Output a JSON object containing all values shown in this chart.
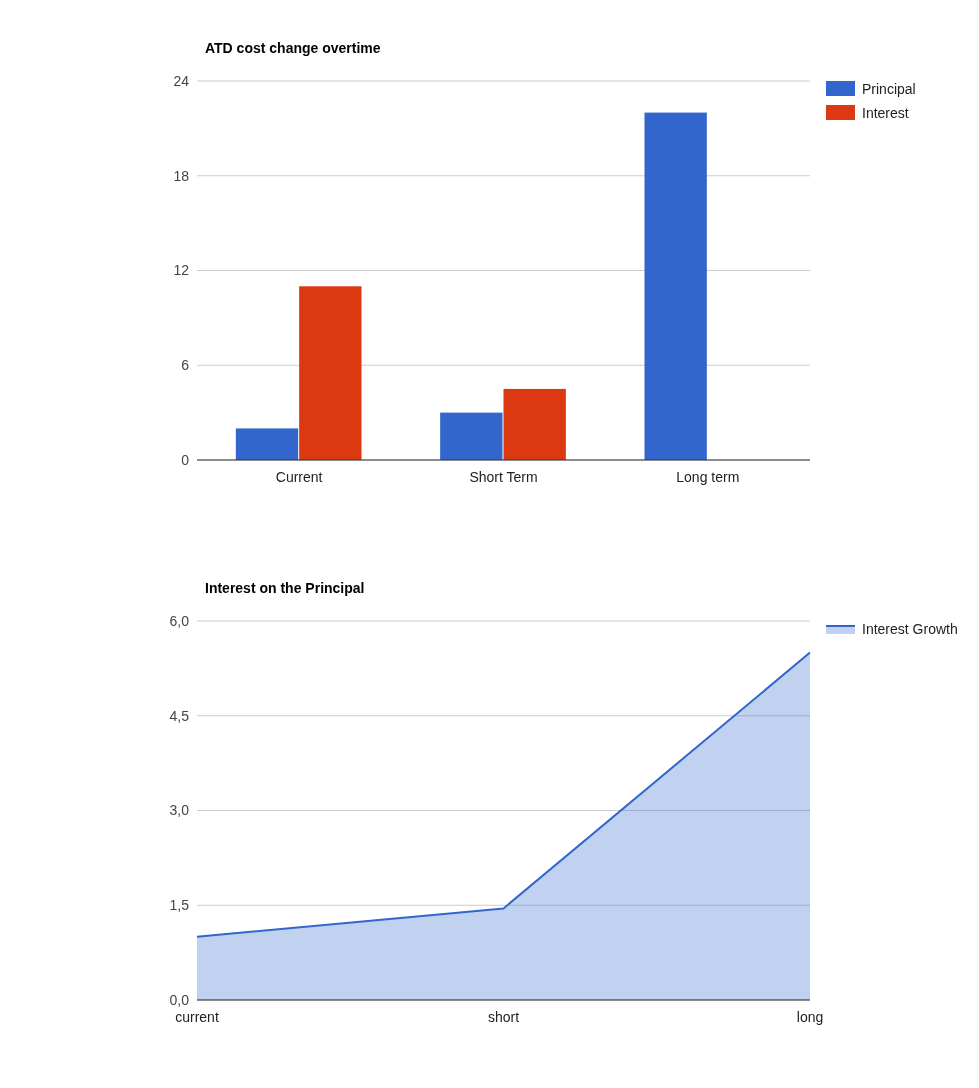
{
  "chart_data": [
    {
      "type": "bar",
      "title": "ATD cost change overtime",
      "categories": [
        "Current",
        "Short Term",
        "Long term"
      ],
      "series": [
        {
          "name": "Principal",
          "color": "#3366cc",
          "values": [
            2,
            3,
            22
          ]
        },
        {
          "name": "Interest",
          "color": "#dc3912",
          "values": [
            11,
            4.5,
            0
          ]
        }
      ],
      "ylim": [
        0,
        24
      ],
      "yticks": [
        0,
        6,
        12,
        18,
        24
      ],
      "grid": "y",
      "legend": "top right"
    },
    {
      "type": "area",
      "title": "Interest on the Principal",
      "categories": [
        "current",
        "short",
        "long"
      ],
      "series": [
        {
          "name": "Interest Growth",
          "color": "#3366cc",
          "values": [
            1,
            1.45,
            5.5
          ]
        }
      ],
      "ylim": [
        0,
        6
      ],
      "yticks": [
        {
          "value": 0,
          "label": "0,0"
        },
        {
          "value": 1.5,
          "label": "1,5"
        },
        {
          "value": 3,
          "label": "3,0"
        },
        {
          "value": 4.5,
          "label": "4,5"
        },
        {
          "value": 6,
          "label": "6,0"
        }
      ],
      "grid": "y",
      "legend": "top right"
    }
  ]
}
